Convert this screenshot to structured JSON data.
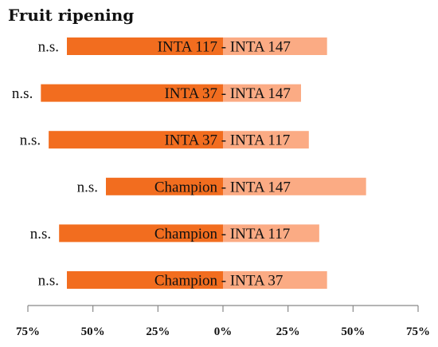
{
  "chart_data": {
    "type": "bar",
    "title": "Fruit ripening",
    "xlabel": "",
    "ylabel": "",
    "xlim": [
      -75,
      75
    ],
    "x_tick_labels": [
      "75%",
      "50%",
      "25%",
      "0%",
      "25%",
      "50%",
      "75%"
    ],
    "x_ticks": [
      -75,
      -50,
      -25,
      0,
      25,
      50,
      75
    ],
    "legend": "none",
    "grid": false,
    "colors": {
      "left": "#f26d1f",
      "right": "#fbab84",
      "axis": "#888888"
    },
    "rows": [
      {
        "left_label": "INTA 117",
        "right_label": "INTA 147",
        "left_value": 60,
        "right_value": 40,
        "significance": "n.s."
      },
      {
        "left_label": "INTA 37",
        "right_label": "INTA 147",
        "left_value": 70,
        "right_value": 30,
        "significance": "n.s."
      },
      {
        "left_label": "INTA 37",
        "right_label": "INTA 117",
        "left_value": 67,
        "right_value": 33,
        "significance": "n.s."
      },
      {
        "left_label": "Champion",
        "right_label": "INTA 147",
        "left_value": 45,
        "right_value": 55,
        "significance": "n.s."
      },
      {
        "left_label": "Champion",
        "right_label": "INTA 117",
        "left_value": 63,
        "right_value": 37,
        "significance": "n.s."
      },
      {
        "left_label": "Champion",
        "right_label": "INTA 37",
        "left_value": 60,
        "right_value": 40,
        "significance": "n.s."
      }
    ]
  }
}
